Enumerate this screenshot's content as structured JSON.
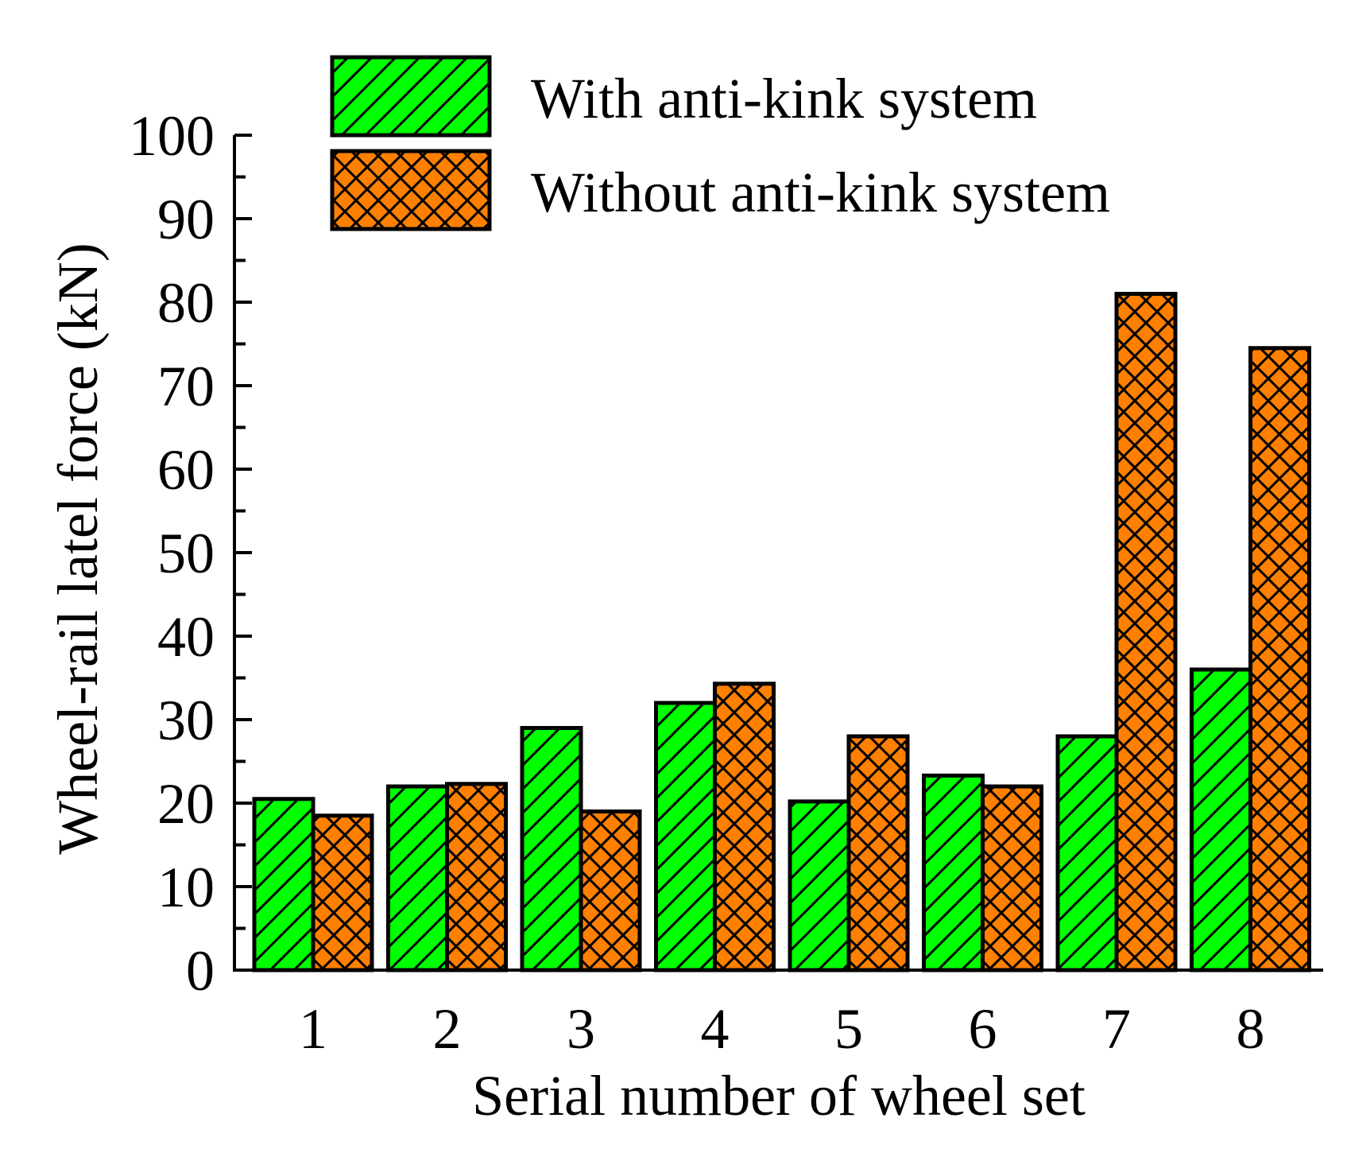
{
  "chart_data": {
    "type": "bar",
    "title": "",
    "xlabel": "Serial number of wheel set",
    "ylabel": "Wheel-rail latel force (kN)",
    "categories": [
      "1",
      "2",
      "3",
      "4",
      "5",
      "6",
      "7",
      "8"
    ],
    "series": [
      {
        "name": "With anti-kink system",
        "values": [
          20.5,
          22,
          29,
          32,
          20.2,
          23.3,
          28,
          36
        ],
        "color": "#00ff00",
        "pattern": "diagonal-hatch"
      },
      {
        "name": "Without anti-kink system",
        "values": [
          18.5,
          22.3,
          19,
          34.3,
          28,
          22,
          81,
          74.5
        ],
        "color": "#ff8000",
        "pattern": "cross-hatch"
      }
    ],
    "ylim": [
      0,
      100
    ],
    "yticks": [
      "0",
      "10",
      "20",
      "30",
      "40",
      "50",
      "60",
      "70",
      "80",
      "90",
      "100"
    ],
    "grid": false,
    "legend_position": "top"
  }
}
